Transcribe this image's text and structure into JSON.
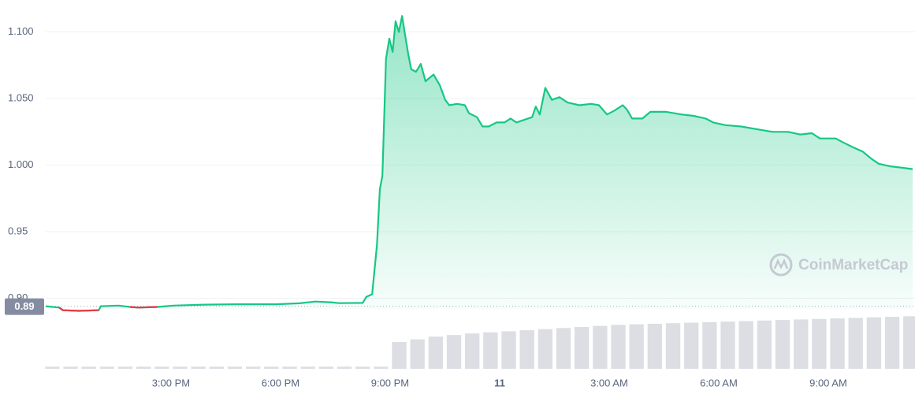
{
  "chart_data": {
    "type": "line",
    "x": [
      11.57,
      11.94,
      12.04,
      12.48,
      13.02,
      13.08,
      13.56,
      13.88,
      14.1,
      14.63,
      15.07,
      15.93,
      16.79,
      17.87,
      18.52,
      18.95,
      19.38,
      19.6,
      20.25,
      20.35,
      20.51,
      20.64,
      20.72,
      20.79,
      20.89,
      20.98,
      21.07,
      21.15,
      21.24,
      21.33,
      21.41,
      21.5,
      21.58,
      21.71,
      21.84,
      21.97,
      22.19,
      22.36,
      22.51,
      22.62,
      22.84,
      23.05,
      23.16,
      23.38,
      23.53,
      23.7,
      23.92,
      24.13,
      24.3,
      24.46,
      24.67,
      24.89,
      24.99,
      25.1,
      25.25,
      25.43,
      25.64,
      25.86,
      26.18,
      26.51,
      26.72,
      26.94,
      27.15,
      27.37,
      27.48,
      27.63,
      27.91,
      28.13,
      28.56,
      28.99,
      29.31,
      29.64,
      29.85,
      30.18,
      30.61,
      31.04,
      31.47,
      31.9,
      32.23,
      32.55,
      32.77,
      33.2,
      33.41,
      33.63,
      33.95,
      34.17,
      34.38,
      34.71,
      35.03,
      35.31
    ],
    "values": [
      0.894,
      0.893,
      0.891,
      0.8905,
      0.891,
      0.894,
      0.8945,
      0.8935,
      0.893,
      0.8935,
      0.8945,
      0.8952,
      0.8955,
      0.8955,
      0.8962,
      0.8975,
      0.897,
      0.8963,
      0.8965,
      0.901,
      0.903,
      0.94,
      0.982,
      0.992,
      1.08,
      1.095,
      1.085,
      1.108,
      1.1,
      1.112,
      1.098,
      1.083,
      1.072,
      1.07,
      1.076,
      1.063,
      1.068,
      1.06,
      1.049,
      1.045,
      1.046,
      1.045,
      1.039,
      1.036,
      1.029,
      1.029,
      1.032,
      1.032,
      1.035,
      1.032,
      1.034,
      1.036,
      1.044,
      1.038,
      1.058,
      1.049,
      1.051,
      1.047,
      1.045,
      1.046,
      1.045,
      1.038,
      1.041,
      1.045,
      1.042,
      1.035,
      1.035,
      1.04,
      1.04,
      1.038,
      1.037,
      1.035,
      1.032,
      1.03,
      1.029,
      1.027,
      1.025,
      1.025,
      1.023,
      1.024,
      1.02,
      1.02,
      1.017,
      1.014,
      1.01,
      1.005,
      1.001,
      0.999,
      0.998,
      0.997
    ],
    "color": "#16c784",
    "down_color": "#ea3943",
    "reference": {
      "value": 0.894,
      "label": "0.89"
    },
    "xlim": [
      11.57,
      35.31
    ],
    "xticks": [
      {
        "value": 15,
        "label": "3:00 PM"
      },
      {
        "value": 18,
        "label": "6:00 PM"
      },
      {
        "value": 21,
        "label": "9:00 PM"
      },
      {
        "value": 24,
        "label": "11",
        "bold": true
      },
      {
        "value": 27,
        "label": "3:00 AM"
      },
      {
        "value": 30,
        "label": "6:00 AM"
      },
      {
        "value": 33,
        "label": "9:00 AM"
      }
    ],
    "ylim": [
      0.892,
      1.124
    ],
    "yticks": [
      {
        "value": 0.9,
        "label": "0.90"
      },
      0.95,
      {
        "value": 1.0,
        "label": "1.000"
      },
      {
        "value": 1.05,
        "label": "1.050"
      },
      {
        "value": 1.1,
        "label": "1.100"
      }
    ],
    "grid": true,
    "volume": {
      "color": "#d3d6dc",
      "x": [
        11.75,
        12.25,
        12.75,
        13.25,
        13.75,
        14.25,
        14.75,
        15.25,
        15.75,
        16.25,
        16.75,
        17.25,
        17.75,
        18.25,
        18.75,
        19.25,
        19.75,
        20.25,
        20.75,
        21.25,
        21.75,
        22.25,
        22.75,
        23.25,
        23.75,
        24.25,
        24.75,
        25.25,
        25.75,
        26.25,
        26.75,
        27.25,
        27.75,
        28.25,
        28.75,
        29.25,
        29.75,
        30.25,
        30.75,
        31.25,
        31.75,
        32.25,
        32.75,
        33.25,
        33.75,
        34.25,
        34.75,
        35.25
      ],
      "values": [
        4,
        4,
        4,
        4,
        4,
        4,
        4,
        4,
        4,
        4,
        4,
        4,
        4,
        4,
        4,
        4,
        4,
        4,
        4,
        50,
        55,
        60,
        63,
        66,
        68,
        70,
        72,
        74,
        76,
        78,
        80,
        82,
        83,
        84,
        85,
        86,
        87,
        88,
        89,
        90,
        91,
        92,
        93,
        94,
        95,
        96,
        97,
        98
      ]
    },
    "y2lim": [
      0,
      100
    ],
    "watermark": "CoinMarketCap"
  }
}
